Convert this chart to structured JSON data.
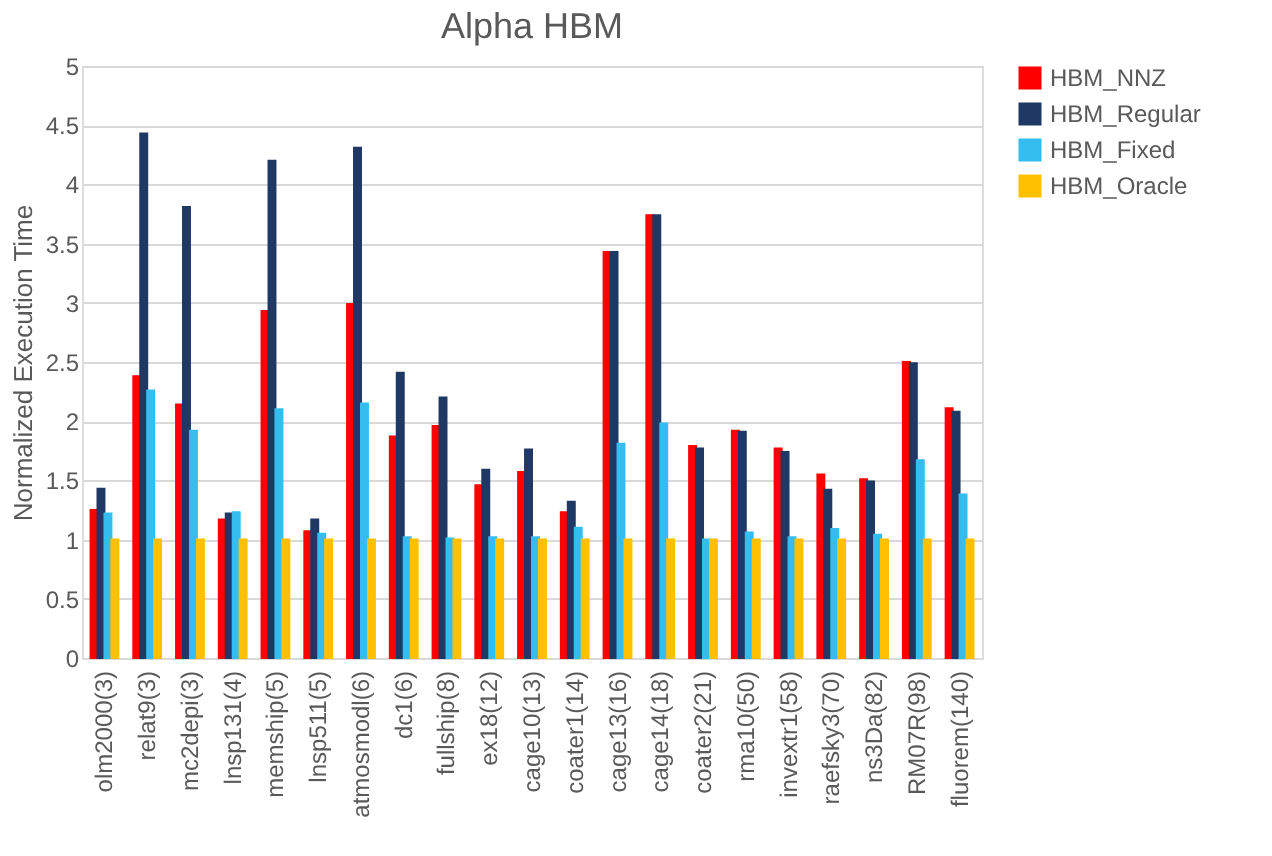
{
  "chart_data": {
    "type": "bar",
    "title": "Alpha HBM",
    "ylabel": "Normalized Execution Time",
    "categories": [
      "olm2000(3)",
      "relat9(3)",
      "mc2depi(3)",
      "lnsp131(4)",
      "memship(5)",
      "lnsp511(5)",
      "atmosmodl(6)",
      "dc1(6)",
      "fullship(8)",
      "ex18(12)",
      "cage10(13)",
      "coater1(14)",
      "cage13(16)",
      "cage14(18)",
      "coater2(21)",
      "rma10(50)",
      "invextr1(58)",
      "raefsky3(70)",
      "ns3Da(82)",
      "RM07R(98)",
      "fluorem(140)"
    ],
    "series": [
      {
        "name": "HBM_NNZ",
        "color": "#ff0000",
        "values": [
          1.25,
          2.38,
          2.14,
          1.17,
          2.93,
          1.07,
          2.99,
          1.87,
          1.96,
          1.46,
          1.57,
          1.23,
          3.43,
          3.74,
          1.79,
          1.92,
          1.77,
          1.55,
          1.51,
          2.5,
          2.11
        ]
      },
      {
        "name": "HBM_Regular",
        "color": "#1f3864",
        "values": [
          1.43,
          4.43,
          3.81,
          1.22,
          4.2,
          1.17,
          4.31,
          2.41,
          2.2,
          1.59,
          1.76,
          1.32,
          3.43,
          3.74,
          1.77,
          1.91,
          1.74,
          1.42,
          1.49,
          2.49,
          2.08
        ]
      },
      {
        "name": "HBM_Fixed",
        "color": "#35bdf0",
        "values": [
          1.22,
          2.26,
          1.92,
          1.23,
          2.1,
          1.05,
          2.15,
          1.02,
          1.01,
          1.02,
          1.02,
          1.1,
          1.81,
          1.98,
          1.0,
          1.06,
          1.02,
          1.09,
          1.04,
          1.67,
          1.38
        ]
      },
      {
        "name": "HBM_Oracle",
        "color": "#ffc000",
        "values": [
          1,
          1,
          1,
          1,
          1,
          1,
          1,
          1,
          1,
          1,
          1,
          1,
          1,
          1,
          1,
          1,
          1,
          1,
          1,
          1,
          1
        ]
      }
    ],
    "ylim": [
      0,
      5
    ],
    "yticks": [
      0,
      0.5,
      1,
      1.5,
      2,
      2.5,
      3,
      3.5,
      4,
      4.5,
      5
    ],
    "grid": "y",
    "legend": "right"
  }
}
